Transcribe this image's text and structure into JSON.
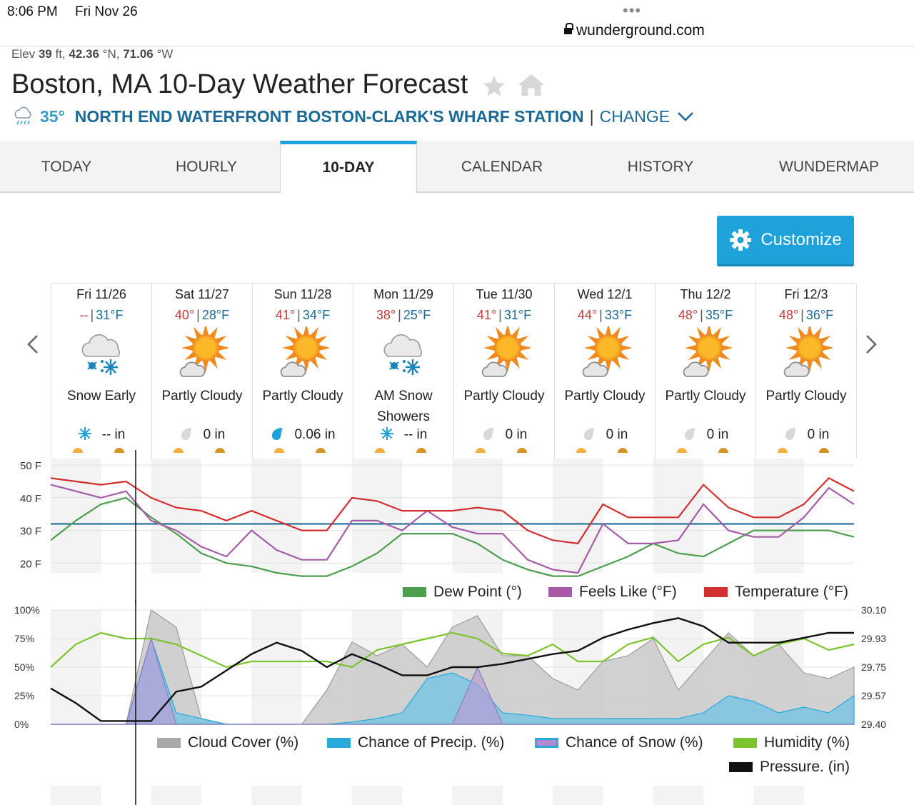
{
  "status_bar": {
    "time": "8:06 PM",
    "date": "Fri Nov 26",
    "dots": "•••",
    "url": "wunderground.com"
  },
  "location": {
    "elev_label": "Elev",
    "elev_value": "39",
    "elev_unit": "ft,",
    "lat": "42.36",
    "lat_unit": "°N,",
    "lon": "71.06",
    "lon_unit": "°W"
  },
  "page_title": "Boston, MA 10-Day Weather Forecast",
  "station": {
    "temp": "35°",
    "name": "NORTH END WATERFRONT BOSTON-CLARK'S WHARF STATION",
    "separator": "|",
    "change_label": "CHANGE"
  },
  "tabs": [
    {
      "label": "TODAY",
      "active": false
    },
    {
      "label": "HOURLY",
      "active": false
    },
    {
      "label": "10-DAY",
      "active": true
    },
    {
      "label": "CALENDAR",
      "active": false
    },
    {
      "label": "HISTORY",
      "active": false
    },
    {
      "label": "WUNDERMAP",
      "active": false
    }
  ],
  "customize_label": "Customize",
  "days": [
    {
      "name": "Fri 11/26",
      "hi": "--",
      "lo": "31°F",
      "icon": "snow",
      "condition": "Snow Early",
      "precip_icon": "snowflake",
      "precip": "-- in"
    },
    {
      "name": "Sat 11/27",
      "hi": "40°",
      "lo": "28°F",
      "icon": "partly-cloudy",
      "condition": "Partly Cloudy",
      "precip_icon": "drop-gray",
      "precip": "0 in"
    },
    {
      "name": "Sun 11/28",
      "hi": "41°",
      "lo": "34°F",
      "icon": "partly-cloudy",
      "condition": "Partly Cloudy",
      "precip_icon": "drop-blue",
      "precip": "0.06 in"
    },
    {
      "name": "Mon 11/29",
      "hi": "38°",
      "lo": "25°F",
      "icon": "snow",
      "condition": "AM Snow Showers",
      "precip_icon": "snowflake",
      "precip": "-- in"
    },
    {
      "name": "Tue 11/30",
      "hi": "41°",
      "lo": "31°F",
      "icon": "partly-cloudy",
      "condition": "Partly Cloudy",
      "precip_icon": "drop-gray",
      "precip": "0 in"
    },
    {
      "name": "Wed 12/1",
      "hi": "44°",
      "lo": "33°F",
      "icon": "partly-cloudy",
      "condition": "Partly Cloudy",
      "precip_icon": "drop-gray",
      "precip": "0 in"
    },
    {
      "name": "Thu 12/2",
      "hi": "48°",
      "lo": "35°F",
      "icon": "partly-cloudy",
      "condition": "Partly Cloudy",
      "precip_icon": "drop-gray",
      "precip": "0 in"
    },
    {
      "name": "Fri 12/3",
      "hi": "48°",
      "lo": "36°F",
      "icon": "partly-cloudy",
      "condition": "Partly Cloudy",
      "precip_icon": "drop-gray",
      "precip": "0 in"
    }
  ],
  "chart_data": [
    {
      "type": "line",
      "x_hours": [
        0,
        6,
        12,
        18,
        24,
        30,
        36,
        42,
        48,
        54,
        60,
        66,
        72,
        78,
        84,
        90,
        96,
        102,
        108,
        114,
        120,
        126,
        132,
        138,
        144,
        150,
        156,
        162,
        168,
        174,
        180,
        186,
        192
      ],
      "y_axis_labels": [
        "50 F",
        "40 F",
        "30 F",
        "20 F"
      ],
      "ylim": [
        17,
        52
      ],
      "freezing_line": 32,
      "legend_position": "bottom-right",
      "series": [
        {
          "name": "Temperature (°F)",
          "color": "#d32f2f",
          "values": [
            46,
            45,
            44,
            45,
            40,
            37,
            36,
            33,
            36,
            33,
            30,
            30,
            40,
            39,
            36,
            36,
            36,
            37,
            36,
            30,
            27,
            26,
            38,
            34,
            34,
            34,
            44,
            37,
            34,
            34,
            38,
            46,
            42
          ]
        },
        {
          "name": "Feels Like (°F)",
          "color": "#a65ba8",
          "values": [
            44,
            42,
            40,
            42,
            33,
            30,
            25,
            22,
            30,
            24,
            21,
            21,
            33,
            33,
            30,
            36,
            31,
            29,
            29,
            21,
            18,
            17,
            32,
            26,
            26,
            27,
            38,
            30,
            28,
            28,
            34,
            43,
            38
          ]
        },
        {
          "name": "Dew Point (°)",
          "color": "#4c9f4c",
          "values": [
            27,
            33,
            38,
            40,
            34,
            29,
            23,
            20,
            19,
            17,
            16,
            16,
            19,
            23,
            29,
            29,
            29,
            26,
            21,
            18,
            16,
            16,
            19,
            22,
            26,
            23,
            22,
            26,
            30,
            30,
            30,
            30,
            28
          ]
        }
      ]
    },
    {
      "type": "area",
      "x_hours": [
        0,
        6,
        12,
        18,
        24,
        30,
        36,
        42,
        48,
        54,
        60,
        66,
        72,
        78,
        84,
        90,
        96,
        102,
        108,
        114,
        120,
        126,
        132,
        138,
        144,
        150,
        156,
        162,
        168,
        174,
        180,
        186,
        192
      ],
      "left_axis_labels": [
        "100%",
        "75%",
        "50%",
        "25%",
        "0%"
      ],
      "right_axis_labels": [
        "30.10",
        "29.93",
        "29.75",
        "29.57",
        "29.40"
      ],
      "ylim": [
        0,
        100
      ],
      "pressure_range": [
        29.4,
        30.1
      ],
      "legend_position": "bottom",
      "series": [
        {
          "name": "Cloud Cover (%)",
          "color": "#a9a9a9",
          "values": [
            0,
            0,
            0,
            0,
            100,
            85,
            5,
            0,
            0,
            0,
            0,
            30,
            72,
            60,
            70,
            50,
            85,
            95,
            60,
            60,
            40,
            30,
            55,
            60,
            75,
            30,
            55,
            80,
            60,
            70,
            45,
            40,
            50
          ]
        },
        {
          "name": "Chance of Precip. (%)",
          "color": "#29a8dc",
          "values": [
            0,
            0,
            0,
            0,
            75,
            10,
            5,
            0,
            0,
            0,
            0,
            0,
            2,
            5,
            10,
            40,
            45,
            35,
            10,
            8,
            5,
            5,
            5,
            5,
            5,
            5,
            10,
            25,
            20,
            10,
            15,
            10,
            25
          ]
        },
        {
          "name": "Chance of Snow (%)",
          "color": "#b58ad0",
          "values": [
            0,
            0,
            0,
            0,
            75,
            0,
            0,
            0,
            0,
            0,
            0,
            0,
            0,
            0,
            0,
            0,
            0,
            50,
            0,
            0,
            0,
            0,
            0,
            0,
            0,
            0,
            0,
            0,
            0,
            0,
            0,
            0,
            0
          ]
        },
        {
          "name": "Humidity (%)",
          "color": "#7cc42e",
          "values": [
            50,
            70,
            80,
            75,
            75,
            70,
            60,
            50,
            55,
            55,
            55,
            55,
            50,
            65,
            70,
            75,
            80,
            75,
            62,
            60,
            70,
            55,
            55,
            70,
            76,
            55,
            70,
            76,
            60,
            70,
            75,
            65,
            70
          ]
        },
        {
          "name": "Pressure. (in)",
          "color": "#111111",
          "values": [
            29.62,
            29.53,
            29.42,
            29.42,
            29.42,
            29.6,
            29.63,
            29.73,
            29.83,
            29.9,
            29.85,
            29.75,
            29.83,
            29.77,
            29.7,
            29.7,
            29.75,
            29.75,
            29.77,
            29.8,
            29.83,
            29.85,
            29.93,
            29.98,
            30.02,
            30.05,
            30.0,
            29.9,
            29.9,
            29.9,
            29.93,
            29.96,
            29.96
          ]
        }
      ]
    }
  ]
}
